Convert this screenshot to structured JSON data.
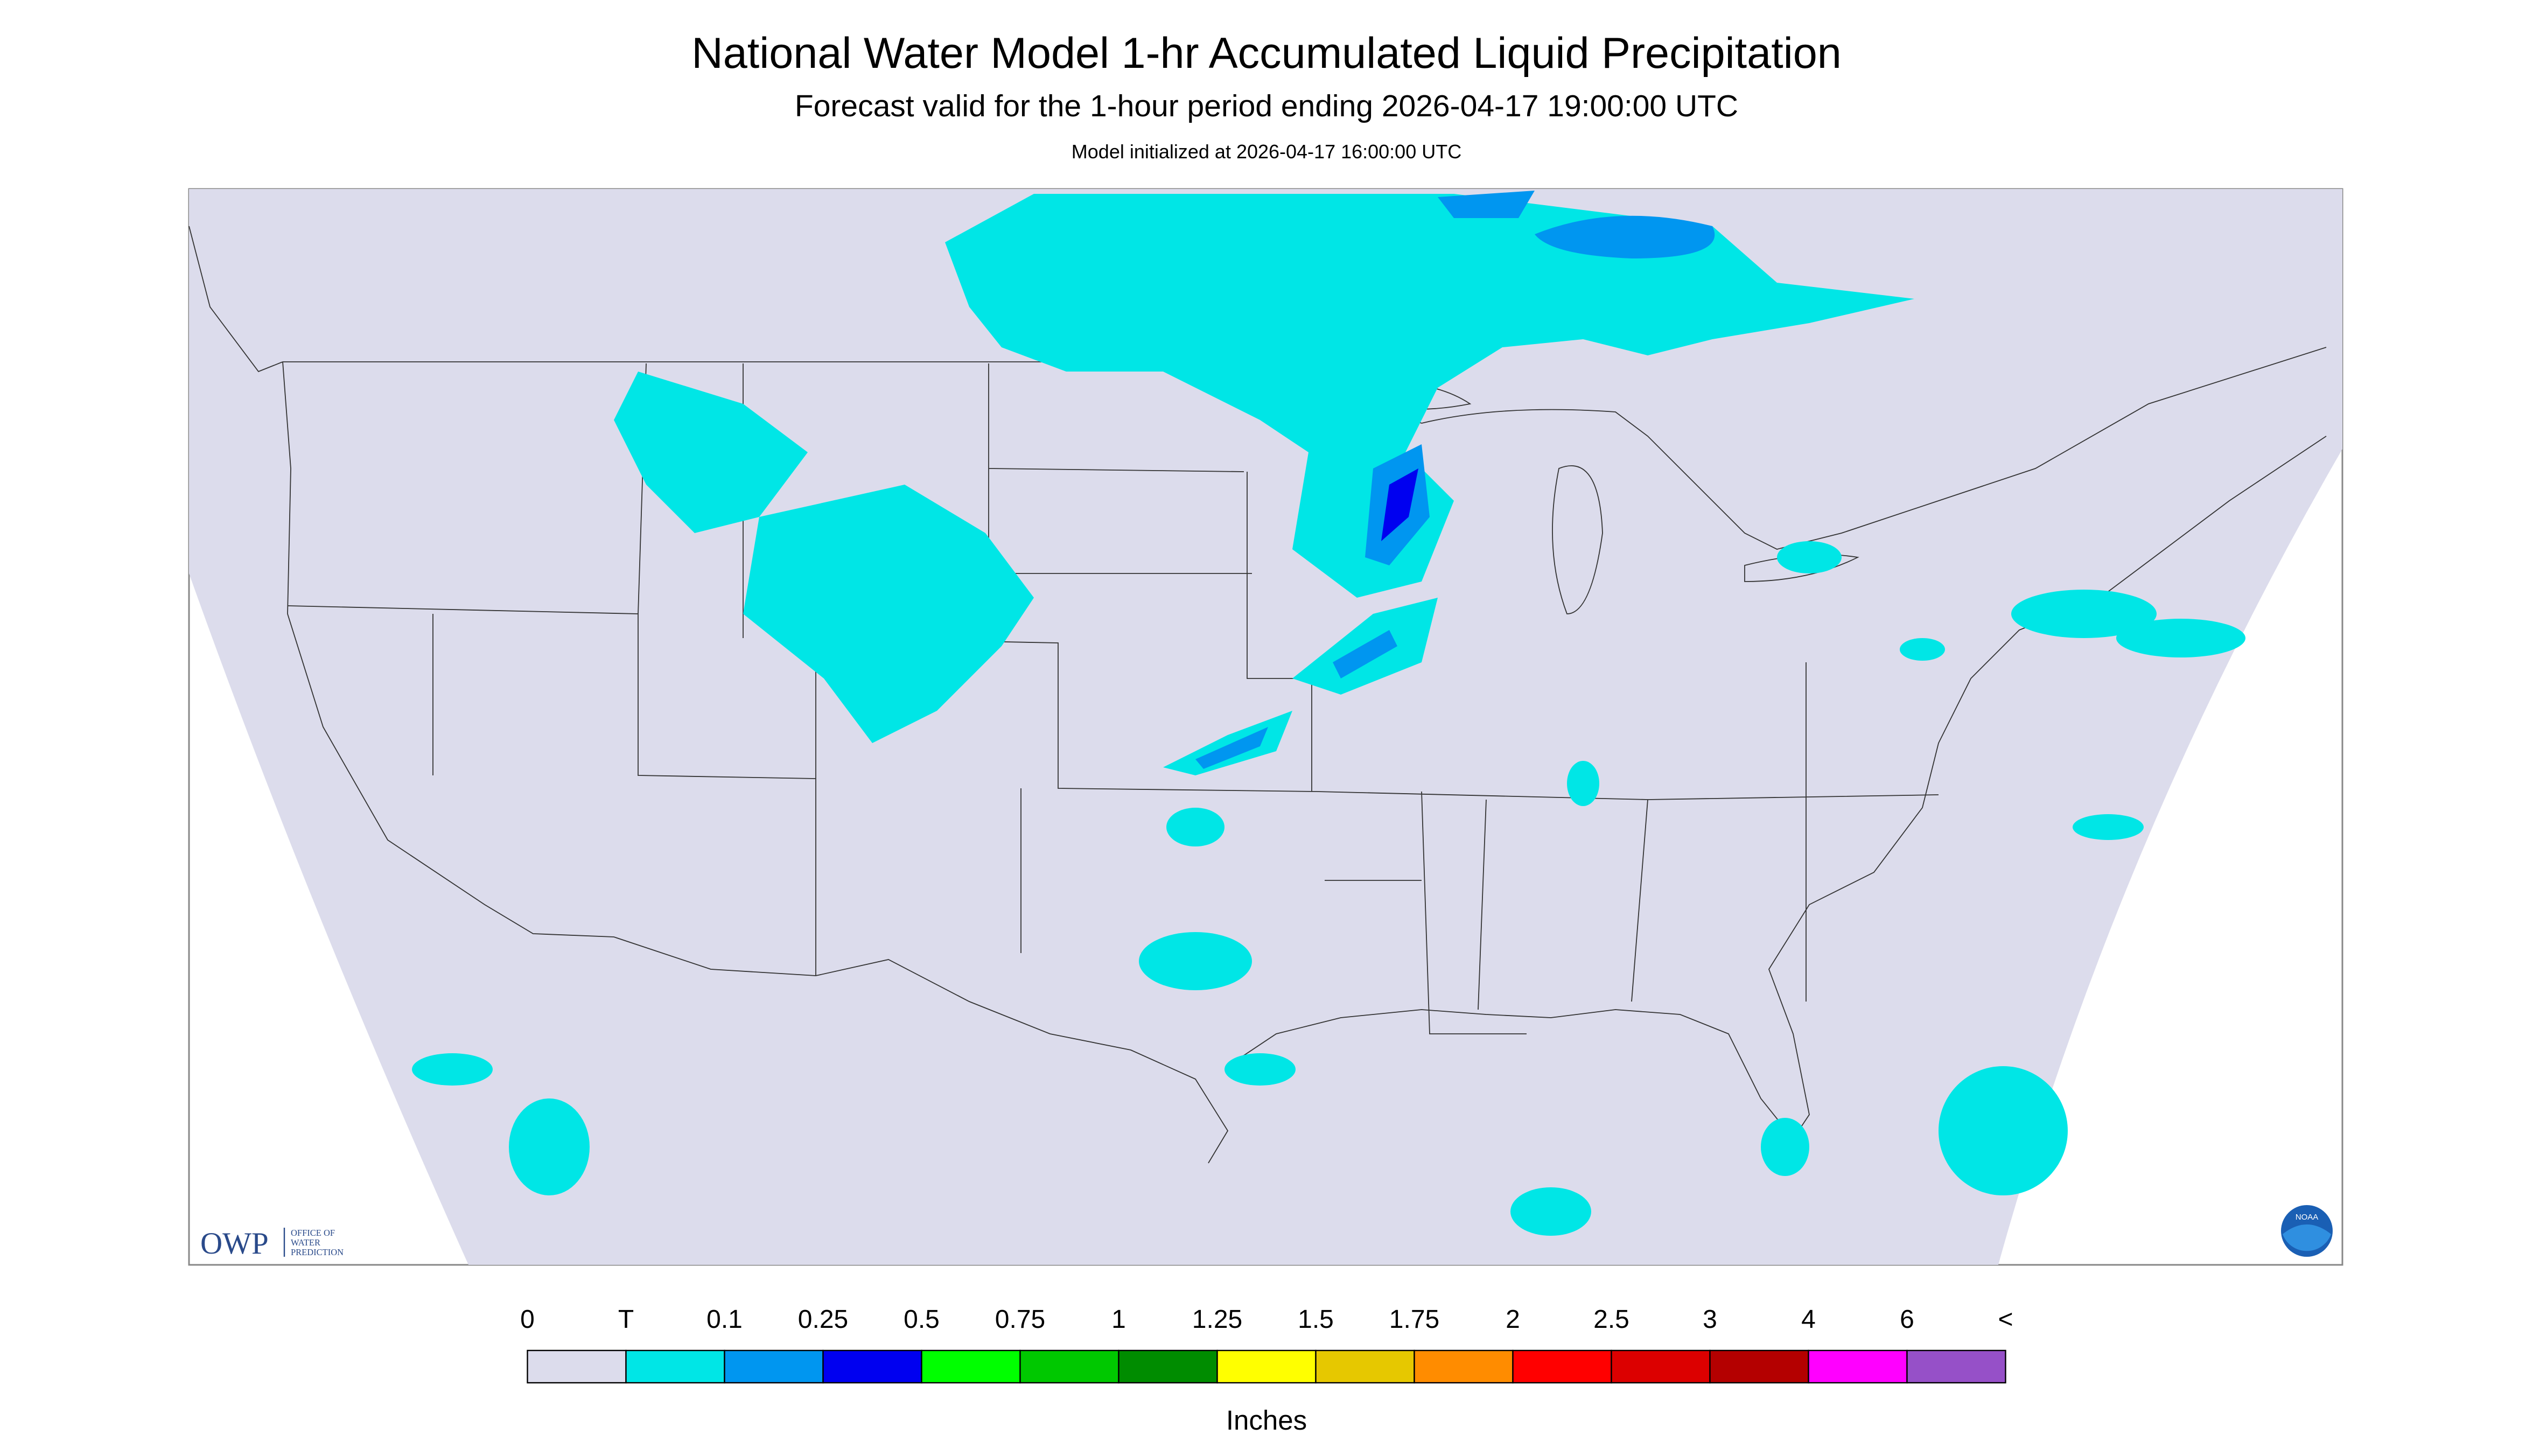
{
  "header": {
    "title": "National Water Model 1-hr Accumulated Liquid Precipitation",
    "subtitle": "Forecast valid for the 1-hour period ending 2026-04-17 19:00:00 UTC",
    "note": "Model initialized at 2026-04-17 16:00:00 UTC"
  },
  "logos": {
    "owp": "OWP",
    "owp_text": [
      "OFFICE OF",
      "WATER",
      "PREDICTION"
    ],
    "noaa": "NOAA"
  },
  "legend": {
    "labels": [
      "0",
      "T",
      "0.1",
      "0.25",
      "0.5",
      "0.75",
      "1",
      "1.25",
      "1.5",
      "1.75",
      "2",
      "2.5",
      "3",
      "4",
      "6",
      "<"
    ],
    "colors": [
      "#dcdcec",
      "#00e6e6",
      "#0096f0",
      "#0000f0",
      "#00ff00",
      "#00c800",
      "#008c00",
      "#ffff00",
      "#e6c800",
      "#ff8c00",
      "#ff0000",
      "#dc0000",
      "#b40000",
      "#ff00ff",
      "#9650c8"
    ],
    "unit": "Inches"
  }
}
